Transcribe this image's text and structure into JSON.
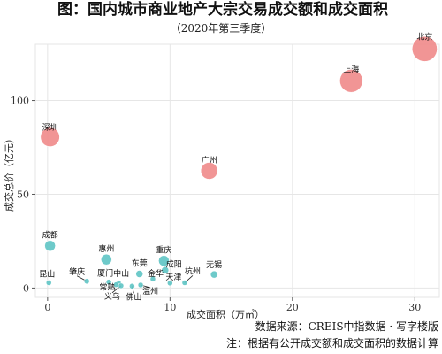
{
  "chart_data": {
    "type": "scatter",
    "title": "图：国内城市商业地产大宗交易成交额和成交面积",
    "subtitle": "（2020年第三季度）",
    "xlabel": "成交面积（万㎡）",
    "ylabel": "成交总价（亿元）",
    "xlim": [
      -1,
      32
    ],
    "ylim": [
      -5,
      130
    ],
    "x_ticks": [
      0,
      10,
      20,
      30
    ],
    "y_ticks": [
      0,
      50,
      100
    ],
    "grid": true,
    "source": "数据来源：CREIS中指数据 · 写字楼版",
    "note": "注：根据有公开成交额和成交面积的数据计算",
    "points": [
      {
        "name": "北京",
        "x": 30.8,
        "y": 127.5,
        "color": "#f08c8c"
      },
      {
        "name": "上海",
        "x": 24.8,
        "y": 110.5,
        "color": "#f08c8c"
      },
      {
        "name": "深圳",
        "x": 0.2,
        "y": 80.5,
        "color": "#f08c8c"
      },
      {
        "name": "广州",
        "x": 13.2,
        "y": 62.5,
        "color": "#f08c8c"
      },
      {
        "name": "成都",
        "x": 0.2,
        "y": 22.5,
        "color": "#62c6c6"
      },
      {
        "name": "惠州",
        "x": 4.8,
        "y": 15.2,
        "color": "#62c6c6"
      },
      {
        "name": "重庆",
        "x": 9.5,
        "y": 14.5,
        "color": "#62c6c6"
      },
      {
        "name": "成阳",
        "x": 9.6,
        "y": 9.5,
        "color": "#62c6c6"
      },
      {
        "name": "东莞",
        "x": 7.5,
        "y": 7.5,
        "color": "#62c6c6"
      },
      {
        "name": "金华",
        "x": 8.6,
        "y": 4.8,
        "color": "#62c6c6"
      },
      {
        "name": "无锡",
        "x": 13.6,
        "y": 7.2,
        "color": "#62c6c6"
      },
      {
        "name": "厦门",
        "x": 5.0,
        "y": 3.2,
        "color": "#62c6c6"
      },
      {
        "name": "肇庆",
        "x": 3.2,
        "y": 3.6,
        "color": "#62c6c6"
      },
      {
        "name": "中山",
        "x": 5.8,
        "y": 2.6,
        "color": "#62c6c6"
      },
      {
        "name": "杭州",
        "x": 11.2,
        "y": 2.8,
        "color": "#62c6c6"
      },
      {
        "name": "天津",
        "x": 10.0,
        "y": 2.6,
        "color": "#62c6c6"
      },
      {
        "name": "常熟",
        "x": 5.6,
        "y": 1.8,
        "color": "#62c6c6"
      },
      {
        "name": "温州",
        "x": 7.6,
        "y": 1.6,
        "color": "#62c6c6"
      },
      {
        "name": "昆山",
        "x": 0.1,
        "y": 2.8,
        "color": "#62c6c6"
      },
      {
        "name": "义乌",
        "x": 6.0,
        "y": 1.2,
        "color": "#62c6c6"
      },
      {
        "name": "佛山",
        "x": 6.9,
        "y": 1.0,
        "color": "#62c6c6"
      }
    ]
  }
}
